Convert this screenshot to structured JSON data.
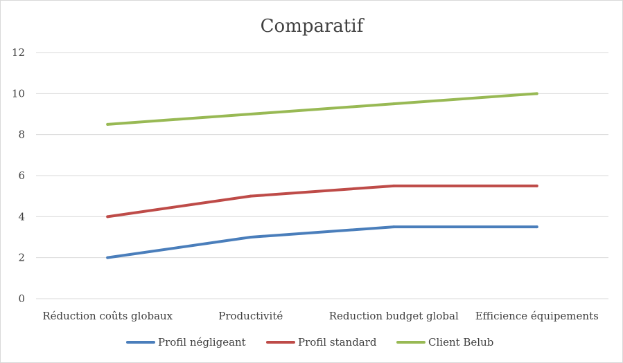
{
  "chart_data": {
    "type": "line",
    "title": "Comparatif",
    "xlabel": "",
    "ylabel": "",
    "categories": [
      "Réduction coûts globaux",
      "Productivité",
      "Reduction budget global",
      "Efficience équipements"
    ],
    "ylim": [
      0,
      12
    ],
    "yticks": [
      0,
      2,
      4,
      6,
      8,
      10,
      12
    ],
    "grid": true,
    "legend_position": "bottom",
    "series": [
      {
        "name": "Profil négligeant",
        "color": "#4a7ebb",
        "values": [
          2,
          3,
          3.5,
          3.5
        ]
      },
      {
        "name": "Profil standard",
        "color": "#be4b48",
        "values": [
          4,
          5,
          5.5,
          5.5
        ]
      },
      {
        "name": "Client Belub",
        "color": "#98b954",
        "values": [
          8.5,
          9,
          9.5,
          10
        ]
      }
    ]
  }
}
